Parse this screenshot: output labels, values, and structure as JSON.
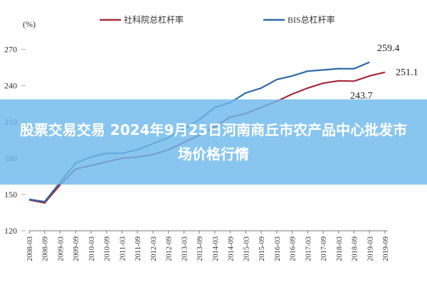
{
  "chart_data": {
    "type": "line",
    "y_label": "(%)",
    "categories": [
      "2008-03",
      "2008-09",
      "2009-03",
      "2009-09",
      "2010-03",
      "2010-09",
      "2011-03",
      "2011-09",
      "2012-03",
      "2012-09",
      "2013-03",
      "2013-09",
      "2014-03",
      "2014-09",
      "2015-03",
      "2015-09",
      "2016-03",
      "2016-09",
      "2017-03",
      "2017-09",
      "2018-03",
      "2018-09",
      "2019-03",
      "2019-09"
    ],
    "series": [
      {
        "name": "社科院总杠杆率",
        "color": "#a52a3c",
        "values": [
          145.5,
          143,
          158,
          171,
          174,
          177,
          180,
          181,
          183,
          187,
          193,
          199,
          206,
          214,
          217,
          222,
          227,
          233,
          238,
          242,
          244,
          243.7,
          248,
          251.1
        ]
      },
      {
        "name": "BIS总杠杆率",
        "color": "#2e6aa6",
        "values": [
          146,
          144,
          160,
          176,
          181,
          184,
          184,
          187,
          192,
          197,
          204,
          212,
          222,
          226,
          234,
          238,
          245,
          248,
          252,
          253,
          254,
          254,
          259.4,
          null
        ]
      }
    ],
    "ylim": [
      120,
      275
    ],
    "yticks": [
      120,
      150,
      180,
      210,
      240,
      270
    ],
    "grid": false,
    "legend": "top"
  },
  "overlay": {
    "title": "股票交易交易 2024年9月25日河南商丘市农产品中心批发市场价格行情"
  }
}
